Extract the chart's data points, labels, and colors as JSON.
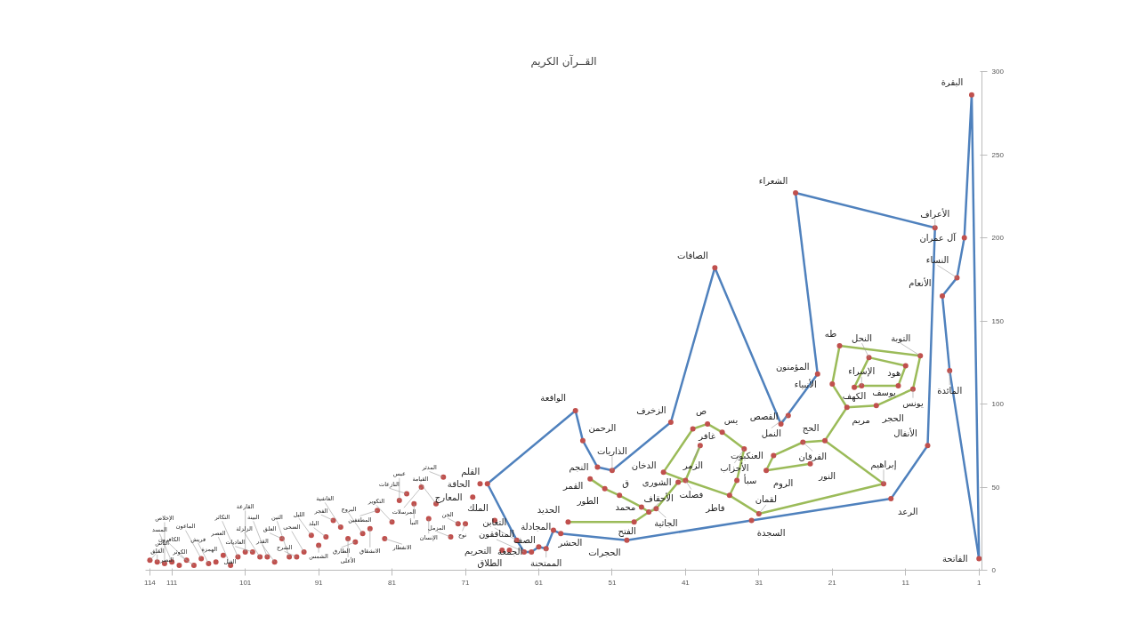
{
  "chart_data": {
    "type": "scatter",
    "title": "القــرآن الكريم",
    "xlim": [
      114.6,
      0.6
    ],
    "ylim": [
      0,
      300
    ],
    "xticks": [
      114,
      111,
      101,
      91,
      81,
      71,
      61,
      51,
      41,
      31,
      21,
      11,
      1
    ],
    "yticks": [
      0,
      50,
      100,
      150,
      200,
      250,
      300
    ],
    "grid": false,
    "series": [
      {
        "type": "line",
        "color": "#4f81bd",
        "x": [
          1,
          2,
          3,
          4,
          6
        ],
        "values": [
          7,
          286,
          200,
          176,
          165
        ]
      },
      {
        "type": "line",
        "color": "#4f81bd",
        "x": [
          1,
          5,
          6
        ],
        "values": [
          7,
          120,
          165
        ]
      },
      {
        "type": "line",
        "color": "#4f81bd",
        "x": [
          7,
          8,
          13,
          32,
          49,
          58,
          59,
          60,
          61,
          62,
          63,
          64,
          68
        ],
        "values": [
          206,
          75,
          43,
          30,
          18,
          22,
          24,
          13,
          14,
          11,
          11,
          18,
          52
        ]
      },
      {
        "type": "line",
        "color": "#4f81bd",
        "x": [
          23,
          28,
          37,
          43,
          51,
          53,
          55,
          56,
          68
        ],
        "values": [
          118,
          88,
          182,
          89,
          60,
          62,
          78,
          96,
          52
        ]
      },
      {
        "type": "line",
        "color": "#4f81bd",
        "x": [
          23,
          26
        ],
        "values": [
          118,
          227
        ]
      },
      {
        "type": "line",
        "color": "#4f81bd",
        "x": [
          7,
          26
        ],
        "values": [
          206,
          227
        ]
      },
      {
        "type": "line",
        "color": "#9bbb59",
        "x": [
          11,
          16,
          18
        ],
        "values": [
          123,
          128,
          110
        ]
      },
      {
        "type": "line",
        "color": "#9bbb59",
        "x": [
          11,
          12,
          17,
          18
        ],
        "values": [
          123,
          111,
          111,
          110
        ]
      },
      {
        "type": "line",
        "color": "#9bbb59",
        "x": [
          9,
          10,
          15,
          19,
          22,
          25,
          29,
          30
        ],
        "values": [
          129,
          109,
          99,
          98,
          78,
          77,
          69,
          60
        ]
      },
      {
        "type": "line",
        "color": "#9bbb59",
        "x": [
          9,
          20,
          21
        ],
        "values": [
          129,
          135,
          112
        ]
      },
      {
        "type": "line",
        "color": "#9bbb59",
        "x": [
          19,
          21
        ],
        "values": [
          98,
          112
        ]
      },
      {
        "type": "line",
        "color": "#9bbb59",
        "x": [
          24,
          30
        ],
        "values": [
          64,
          60
        ]
      },
      {
        "type": "line",
        "color": "#9bbb59",
        "x": [
          14,
          22
        ],
        "values": [
          52,
          78
        ]
      },
      {
        "type": "line",
        "color": "#9bbb59",
        "x": [
          14,
          31,
          35,
          41
        ],
        "values": [
          52,
          34,
          45,
          54
        ]
      },
      {
        "type": "line",
        "color": "#9bbb59",
        "x": [
          39,
          41,
          44
        ],
        "values": [
          75,
          54,
          59
        ]
      },
      {
        "type": "line",
        "color": "#9bbb59",
        "x": [
          33,
          34,
          35
        ],
        "values": [
          73,
          54,
          45
        ]
      },
      {
        "type": "line",
        "color": "#9bbb59",
        "x": [
          33,
          36,
          38,
          40,
          44
        ],
        "values": [
          73,
          83,
          88,
          85,
          59
        ]
      },
      {
        "type": "line",
        "color": "#9bbb59",
        "x": [
          41,
          42,
          45,
          46,
          48,
          57
        ],
        "values": [
          54,
          53,
          37,
          35,
          29,
          29
        ]
      },
      {
        "type": "line",
        "color": "#9bbb59",
        "x": [
          46,
          47,
          50,
          52,
          54
        ],
        "values": [
          35,
          38,
          45,
          49,
          55
        ]
      },
      {
        "marker": "circle",
        "color": "#c0504d",
        "x": [
          1,
          2,
          3,
          4,
          5,
          6,
          7,
          8,
          9,
          10,
          11,
          12,
          13,
          14,
          15,
          16,
          17,
          18,
          19,
          20,
          21,
          22,
          23,
          24,
          25,
          26,
          27,
          28,
          29,
          30,
          31,
          32,
          33,
          34,
          35,
          36,
          37,
          38,
          39,
          40,
          41,
          42,
          43,
          44,
          45,
          46,
          47,
          48,
          49,
          50,
          51,
          52,
          53,
          54,
          55,
          56,
          57,
          58,
          59,
          60,
          61,
          62,
          63,
          64,
          65,
          66,
          67,
          68,
          69,
          70,
          71,
          72,
          73,
          74,
          75,
          76,
          77,
          78,
          79,
          80,
          81,
          82,
          83,
          84,
          85,
          86,
          87,
          88,
          89,
          90,
          91,
          92,
          93,
          94,
          95,
          96,
          97,
          98,
          99,
          100,
          101,
          102,
          103,
          104,
          105,
          106,
          107,
          108,
          109,
          110,
          111,
          112,
          113,
          114
        ],
        "values": [
          7,
          286,
          200,
          176,
          120,
          165,
          206,
          75,
          129,
          109,
          123,
          111,
          43,
          52,
          99,
          128,
          111,
          110,
          98,
          135,
          112,
          78,
          118,
          64,
          77,
          227,
          93,
          88,
          69,
          60,
          34,
          30,
          73,
          54,
          45,
          83,
          182,
          88,
          75,
          85,
          54,
          53,
          89,
          59,
          37,
          35,
          38,
          29,
          18,
          45,
          60,
          49,
          62,
          55,
          78,
          96,
          29,
          22,
          24,
          13,
          14,
          11,
          11,
          18,
          12,
          12,
          30,
          52,
          52,
          44,
          28,
          28,
          20,
          56,
          40,
          31,
          50,
          40,
          46,
          42,
          29,
          19,
          36,
          25,
          22,
          17,
          19,
          26,
          30,
          20,
          15,
          21,
          11,
          8,
          8,
          19,
          5,
          8,
          8,
          11,
          11,
          8,
          3,
          9,
          5,
          4,
          7,
          3,
          6,
          3,
          5,
          4,
          5,
          6
        ]
      }
    ],
    "annotations": [
      {
        "text": "الفاتحة",
        "x": 1,
        "y": 7
      },
      {
        "text": "البقرة",
        "x": 2,
        "y": 286
      },
      {
        "text": "آل عمران",
        "x": 3,
        "y": 200
      },
      {
        "text": "النساء",
        "x": 4,
        "y": 176
      },
      {
        "text": "المائدة",
        "x": 5,
        "y": 120
      },
      {
        "text": "الأنعام",
        "x": 6,
        "y": 165
      },
      {
        "text": "الأعراف",
        "x": 7,
        "y": 206
      },
      {
        "text": "الأنفال",
        "x": 8,
        "y": 75
      },
      {
        "text": "التوبة",
        "x": 9,
        "y": 129
      },
      {
        "text": "يونس",
        "x": 10,
        "y": 109
      },
      {
        "text": "هود",
        "x": 11,
        "y": 123
      },
      {
        "text": "يوسف",
        "x": 12,
        "y": 111
      },
      {
        "text": "الرعد",
        "x": 13,
        "y": 43
      },
      {
        "text": "إبراهيم",
        "x": 14,
        "y": 52
      },
      {
        "text": "الحجر",
        "x": 15,
        "y": 99
      },
      {
        "text": "النحل",
        "x": 16,
        "y": 128
      },
      {
        "text": "الإسراء",
        "x": 17,
        "y": 111
      },
      {
        "text": "الكهف",
        "x": 18,
        "y": 110
      },
      {
        "text": "مريم",
        "x": 19,
        "y": 98
      },
      {
        "text": "طه",
        "x": 20,
        "y": 135
      },
      {
        "text": "الأنبياء",
        "x": 21,
        "y": 112
      },
      {
        "text": "الحج",
        "x": 22,
        "y": 78
      },
      {
        "text": "المؤمنون",
        "x": 23,
        "y": 118
      },
      {
        "text": "النور",
        "x": 24,
        "y": 64
      },
      {
        "text": "الفرقان",
        "x": 25,
        "y": 77
      },
      {
        "text": "الشعراء",
        "x": 26,
        "y": 227
      },
      {
        "text": "النمل",
        "x": 27,
        "y": 93
      },
      {
        "text": "القصص",
        "x": 28,
        "y": 88
      },
      {
        "text": "العنكبوت",
        "x": 29,
        "y": 69
      },
      {
        "text": "الروم",
        "x": 30,
        "y": 60
      },
      {
        "text": "لقمان",
        "x": 31,
        "y": 34
      },
      {
        "text": "السجدة",
        "x": 32,
        "y": 30
      },
      {
        "text": "الأحزاب",
        "x": 33,
        "y": 73
      },
      {
        "text": "سبأ",
        "x": 34,
        "y": 54
      },
      {
        "text": "فاطر",
        "x": 35,
        "y": 45
      },
      {
        "text": "يس",
        "x": 36,
        "y": 83
      },
      {
        "text": "الصافات",
        "x": 37,
        "y": 182
      },
      {
        "text": "ص",
        "x": 38,
        "y": 88
      },
      {
        "text": "الزمر",
        "x": 39,
        "y": 75
      },
      {
        "text": "غافر",
        "x": 40,
        "y": 85
      },
      {
        "text": "فصلت",
        "x": 41,
        "y": 54
      },
      {
        "text": "الشورى",
        "x": 42,
        "y": 53
      },
      {
        "text": "الزخرف",
        "x": 43,
        "y": 89
      },
      {
        "text": "الدخان",
        "x": 44,
        "y": 59
      },
      {
        "text": "الجاثية",
        "x": 45,
        "y": 37
      },
      {
        "text": "الأحقاف",
        "x": 46,
        "y": 35
      },
      {
        "text": "محمد",
        "x": 47,
        "y": 38
      },
      {
        "text": "الفتح",
        "x": 48,
        "y": 29
      },
      {
        "text": "الحجرات",
        "x": 49,
        "y": 18
      },
      {
        "text": "ق",
        "x": 50,
        "y": 45
      },
      {
        "text": "الذاريات",
        "x": 51,
        "y": 60
      },
      {
        "text": "الطور",
        "x": 52,
        "y": 49
      },
      {
        "text": "النجم",
        "x": 53,
        "y": 62
      },
      {
        "text": "القمر",
        "x": 54,
        "y": 55
      },
      {
        "text": "الرحمن",
        "x": 55,
        "y": 78
      },
      {
        "text": "الواقعة",
        "x": 56,
        "y": 96
      },
      {
        "text": "الحديد",
        "x": 57,
        "y": 29
      },
      {
        "text": "المجادلة",
        "x": 58,
        "y": 22
      },
      {
        "text": "الحشر",
        "x": 59,
        "y": 24
      },
      {
        "text": "الممتحنة",
        "x": 60,
        "y": 13
      },
      {
        "text": "الصف",
        "x": 61,
        "y": 14
      },
      {
        "text": "الجمعة",
        "x": 62,
        "y": 11
      },
      {
        "text": "المنافقون",
        "x": 63,
        "y": 11
      },
      {
        "text": "التغابن",
        "x": 64,
        "y": 18
      },
      {
        "text": "الطلاق",
        "x": 65,
        "y": 12
      },
      {
        "text": "التحريم",
        "x": 66,
        "y": 12
      },
      {
        "text": "الملك",
        "x": 67,
        "y": 30
      },
      {
        "text": "القلم",
        "x": 68,
        "y": 52
      },
      {
        "text": "الحاقة",
        "x": 69,
        "y": 52
      },
      {
        "text": "المعارج",
        "x": 70,
        "y": 44
      },
      {
        "text": "نوح",
        "x": 71,
        "y": 28
      },
      {
        "text": "الجن",
        "x": 72,
        "y": 28
      },
      {
        "text": "المزمل",
        "x": 73,
        "y": 20
      },
      {
        "text": "المدثر",
        "x": 74,
        "y": 56
      },
      {
        "text": "القيامة",
        "x": 75,
        "y": 40
      },
      {
        "text": "الإنسان",
        "x": 76,
        "y": 31
      },
      {
        "text": "المرسلات",
        "x": 77,
        "y": 50
      },
      {
        "text": "النبأ",
        "x": 78,
        "y": 40
      },
      {
        "text": "النازعات",
        "x": 79,
        "y": 46
      },
      {
        "text": "عبس",
        "x": 80,
        "y": 42
      },
      {
        "text": "التكوير",
        "x": 81,
        "y": 29
      },
      {
        "text": "الانفطار",
        "x": 82,
        "y": 19
      },
      {
        "text": "المطففين",
        "x": 83,
        "y": 36
      },
      {
        "text": "الانشقاق",
        "x": 84,
        "y": 25
      },
      {
        "text": "البروج",
        "x": 85,
        "y": 22
      },
      {
        "text": "الطارق",
        "x": 86,
        "y": 17
      },
      {
        "text": "الأعلى",
        "x": 87,
        "y": 19
      },
      {
        "text": "الغاشية",
        "x": 88,
        "y": 26
      },
      {
        "text": "الفجر",
        "x": 89,
        "y": 30
      },
      {
        "text": "البلد",
        "x": 90,
        "y": 20
      },
      {
        "text": "الشمس",
        "x": 91,
        "y": 15
      },
      {
        "text": "الليل",
        "x": 92,
        "y": 21
      },
      {
        "text": "الضحى",
        "x": 93,
        "y": 11
      },
      {
        "text": "الشرح",
        "x": 94,
        "y": 8
      },
      {
        "text": "التين",
        "x": 95,
        "y": 8
      },
      {
        "text": "العلق",
        "x": 96,
        "y": 19
      },
      {
        "text": "القدر",
        "x": 97,
        "y": 5
      },
      {
        "text": "البينة",
        "x": 98,
        "y": 8
      },
      {
        "text": "الزلزلة",
        "x": 99,
        "y": 8
      },
      {
        "text": "العاديات",
        "x": 100,
        "y": 11
      },
      {
        "text": "القارعة",
        "x": 101,
        "y": 11
      },
      {
        "text": "التكاثر",
        "x": 102,
        "y": 8
      },
      {
        "text": "العصر",
        "x": 103,
        "y": 3
      },
      {
        "text": "الهمزة",
        "x": 104,
        "y": 9
      },
      {
        "text": "الفيل",
        "x": 105,
        "y": 5
      },
      {
        "text": "قريش",
        "x": 106,
        "y": 4
      },
      {
        "text": "الماعون",
        "x": 107,
        "y": 7
      },
      {
        "text": "الكوثر",
        "x": 108,
        "y": 3
      },
      {
        "text": "الكافرون",
        "x": 109,
        "y": 6
      },
      {
        "text": "النصر",
        "x": 110,
        "y": 3
      },
      {
        "text": "المسد",
        "x": 111,
        "y": 5
      },
      {
        "text": "الإخلاص",
        "x": 112,
        "y": 4
      },
      {
        "text": "الفلق",
        "x": 113,
        "y": 5
      },
      {
        "text": "الناس",
        "x": 114,
        "y": 6
      }
    ]
  }
}
